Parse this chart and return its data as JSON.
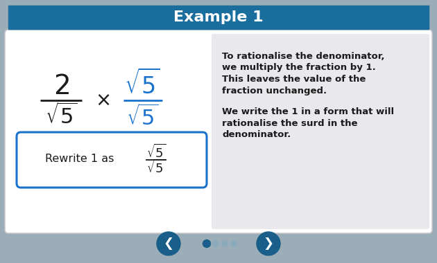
{
  "title": "Example 1",
  "title_bg_color": "#1a6e9e",
  "title_text_color": "#ffffff",
  "title_fontsize": 16,
  "outer_bg_color": "#9badb8",
  "inner_bg_color": "#ffffff",
  "right_panel_bg": "#e8e8ed",
  "main_fraction_color": "#1a1a1a",
  "blue_fraction_color": "#1a72cc",
  "text_color": "#1a1a1a",
  "box_border_color": "#1a72cc",
  "box_bg_color": "#ffffff",
  "nav_color": "#1a5f8a",
  "dot_active_color": "#1a5f8a",
  "dot_inactive_color": "#8aaabb",
  "right_text_para1": "To rationalise the denominator,\nwe multiply the fraction by 1.\nThis leaves the value of the\nfraction unchanged.",
  "right_text_para2": "We write the 1 in a form that will\nrationalise the surd in the\ndenominator."
}
